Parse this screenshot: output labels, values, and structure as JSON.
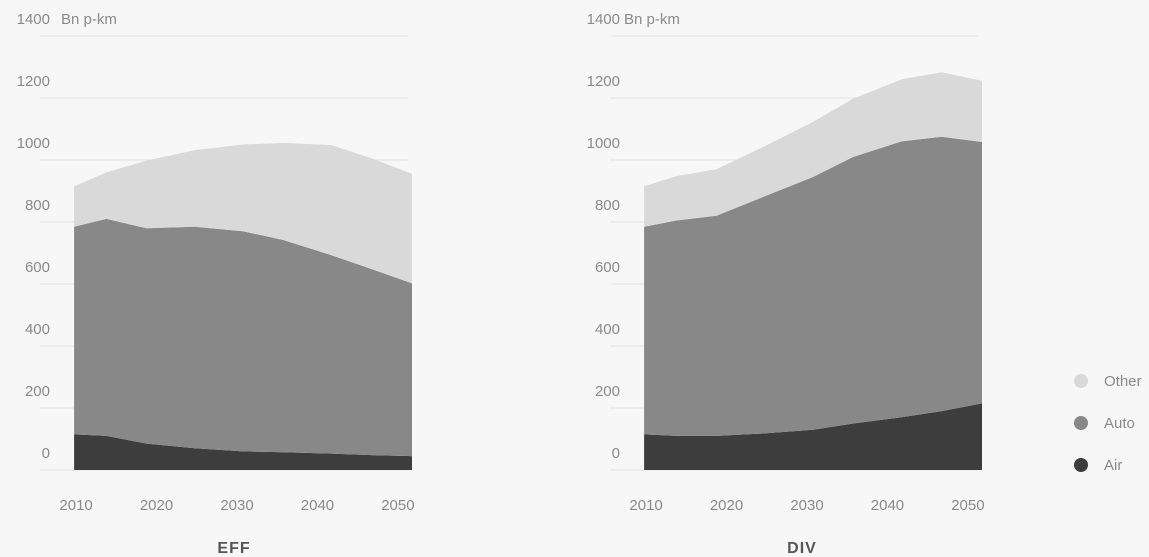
{
  "chart_data": [
    {
      "type": "area",
      "title": "EFF",
      "unit": "Bn p-km",
      "ylim": [
        0,
        1400
      ],
      "yticks": [
        0,
        200,
        400,
        600,
        800,
        1000,
        1200,
        1400
      ],
      "xticks": [
        2010,
        2020,
        2030,
        2040,
        2050
      ],
      "xlim": [
        2008,
        2052
      ],
      "stacked": true,
      "x": [
        2010,
        2014,
        2019,
        2025,
        2031,
        2036,
        2042,
        2047,
        2052
      ],
      "series": [
        {
          "name": "Air",
          "values": [
            115,
            110,
            85,
            70,
            60,
            57,
            53,
            48,
            45
          ]
        },
        {
          "name": "Auto",
          "values": [
            670,
            700,
            695,
            715,
            710,
            685,
            640,
            600,
            557
          ]
        },
        {
          "name": "Other",
          "values": [
            130,
            150,
            218,
            247,
            280,
            313,
            355,
            357,
            353
          ]
        }
      ]
    },
    {
      "type": "area",
      "title": "DIV",
      "unit": "Bn p-km",
      "ylim": [
        0,
        1400
      ],
      "yticks": [
        0,
        200,
        400,
        600,
        800,
        1000,
        1200,
        1400
      ],
      "xticks": [
        2010,
        2020,
        2030,
        2040,
        2050
      ],
      "xlim": [
        2008,
        2052
      ],
      "stacked": true,
      "x": [
        2010,
        2014,
        2019,
        2025,
        2031,
        2036,
        2042,
        2047,
        2052
      ],
      "series": [
        {
          "name": "Air",
          "values": [
            115,
            110,
            110,
            118,
            130,
            150,
            170,
            190,
            215
          ]
        },
        {
          "name": "Auto",
          "values": [
            670,
            695,
            710,
            765,
            815,
            860,
            890,
            885,
            843
          ]
        },
        {
          "name": "Other",
          "values": [
            130,
            143,
            150,
            162,
            178,
            188,
            200,
            208,
            197
          ]
        }
      ]
    }
  ],
  "legend": [
    {
      "label": "Other",
      "color": "#d9d9d9"
    },
    {
      "label": "Auto",
      "color": "#888888"
    },
    {
      "label": "Air",
      "color": "#3d3d3d"
    }
  ],
  "colors": {
    "Air": "#3d3d3d",
    "Auto": "#888888",
    "Other": "#d9d9d9",
    "grid": "#e2e2e2"
  }
}
